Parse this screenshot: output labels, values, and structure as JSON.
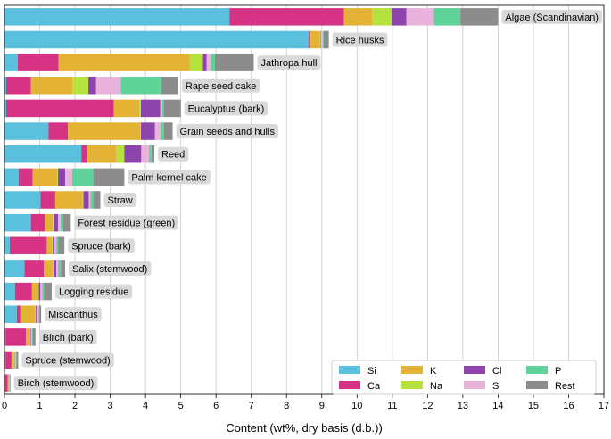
{
  "chart_data": {
    "type": "bar",
    "orientation": "horizontal",
    "stacked": true,
    "title": "",
    "xlabel": "Content (wt%, dry basis (d.b.))",
    "ylabel": "",
    "xlim": [
      0,
      17
    ],
    "xticks": [
      "0",
      "1",
      "2",
      "3",
      "4",
      "5",
      "6",
      "7",
      "8",
      "9",
      "10",
      "11",
      "12",
      "13",
      "14",
      "15",
      "16",
      "17"
    ],
    "grid": "vertical",
    "legend_position": "bottom-right",
    "colors": {
      "Si": "#5bc0de",
      "Ca": "#d63384",
      "K": "#e4b335",
      "Na": "#b6e23e",
      "Cl": "#8e44ad",
      "S": "#e8b4dc",
      "P": "#5fd39a",
      "Rest": "#8c8c8c"
    },
    "legend_order": [
      "Si",
      "Ca",
      "K",
      "Na",
      "Cl",
      "S",
      "P",
      "Rest"
    ],
    "categories": [
      "Algae (Scandinavian)",
      "Rice husks",
      "Jathropa hull",
      "Rape seed cake",
      "Eucalyptus (bark)",
      "Grain seeds and hulls",
      "Reed",
      "Palm kernel cake",
      "Straw",
      "Forest residue (green)",
      "Spruce (bark)",
      "Salix (stemwood)",
      "Logging residue",
      "Miscanthus",
      "Birch (bark)",
      "Spruce (stemwood)",
      "Birch (stemwood)"
    ],
    "series": [
      {
        "name": "Si",
        "values": [
          6.38,
          8.63,
          0.38,
          0.05,
          0.05,
          1.25,
          2.18,
          0.4,
          1.02,
          0.75,
          0.15,
          0.57,
          0.3,
          0.35,
          0.03,
          0.03,
          0.02
        ]
      },
      {
        "name": "Ca",
        "values": [
          3.25,
          0.05,
          1.15,
          0.7,
          3.05,
          0.55,
          0.15,
          0.4,
          0.42,
          0.4,
          1.05,
          0.55,
          0.48,
          0.1,
          0.58,
          0.17,
          0.07
        ]
      },
      {
        "name": "K",
        "values": [
          0.8,
          0.27,
          3.72,
          1.18,
          0.72,
          2.05,
          0.85,
          0.7,
          0.78,
          0.22,
          0.15,
          0.25,
          0.17,
          0.42,
          0.1,
          0.07,
          0.02
        ]
      },
      {
        "name": "Na",
        "values": [
          0.55,
          0.02,
          0.38,
          0.45,
          0.05,
          0.02,
          0.22,
          0.02,
          0.02,
          0.03,
          0.02,
          0.02,
          0.02,
          0.02,
          0.02,
          0.02,
          0.01
        ]
      },
      {
        "name": "Cl",
        "values": [
          0.42,
          0.01,
          0.1,
          0.22,
          0.55,
          0.4,
          0.48,
          0.2,
          0.15,
          0.12,
          0.05,
          0.08,
          0.05,
          0.03,
          0.02,
          0.01,
          0.01
        ]
      },
      {
        "name": "S",
        "values": [
          0.78,
          0.05,
          0.12,
          0.7,
          0.05,
          0.15,
          0.22,
          0.2,
          0.05,
          0.07,
          0.05,
          0.05,
          0.05,
          0.05,
          0.03,
          0.03,
          0.01
        ]
      },
      {
        "name": "P",
        "values": [
          0.75,
          0.02,
          0.12,
          1.15,
          0.05,
          0.1,
          0.07,
          0.6,
          0.08,
          0.07,
          0.05,
          0.08,
          0.05,
          0.02,
          0.02,
          0.01,
          0.01
        ]
      },
      {
        "name": "Rest",
        "values": [
          1.07,
          0.15,
          1.1,
          0.48,
          0.48,
          0.25,
          0.08,
          0.88,
          0.2,
          0.22,
          0.18,
          0.12,
          0.22,
          0.05,
          0.08,
          0.05,
          0.02
        ]
      }
    ]
  }
}
